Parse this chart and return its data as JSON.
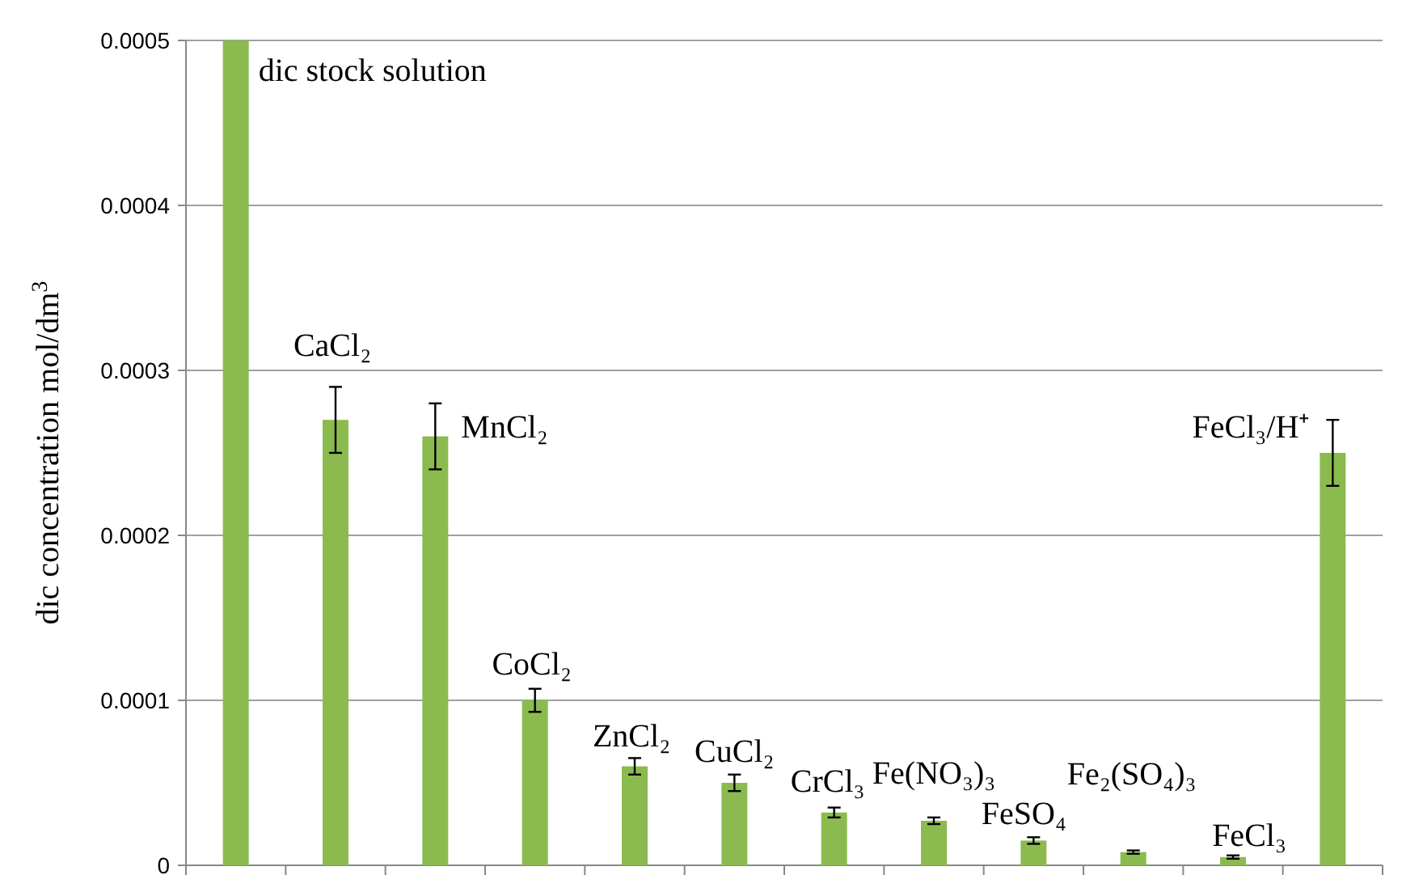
{
  "chart_data": {
    "type": "bar",
    "ylabel": "dic concentration mol/dm$^{3}$",
    "categories": [
      null,
      null,
      null,
      null,
      null,
      null,
      null,
      null,
      null,
      null,
      null,
      null
    ],
    "values": [
      0.0005,
      0.00027,
      0.00026,
      0.0001,
      6e-05,
      5e-05,
      3.2e-05,
      2.7e-05,
      1.5e-05,
      8e-06,
      5e-06,
      0.00025
    ],
    "errors": [
      null,
      2e-05,
      2e-05,
      7e-06,
      5e-06,
      5e-06,
      3e-06,
      2e-06,
      2e-06,
      1e-06,
      1e-06,
      2e-05
    ],
    "color": "#8bbb4f",
    "ylim": [
      0,
      0.0005
    ],
    "yticks": [
      0,
      0.0001,
      0.0002,
      0.0003,
      0.0004,
      0.0005
    ],
    "grid": "y",
    "annotations": [
      "dic stock solution",
      "CaCl₂",
      "MnCl₂",
      "CoCl₂",
      "ZnCl₂",
      "CuCl₂",
      "CrCl₃",
      "Fe(NO₃)₃",
      "FeSO₄",
      "Fe₂(SO₄)₃",
      "FeCl₃",
      "FeCl₃/H⁺"
    ]
  }
}
